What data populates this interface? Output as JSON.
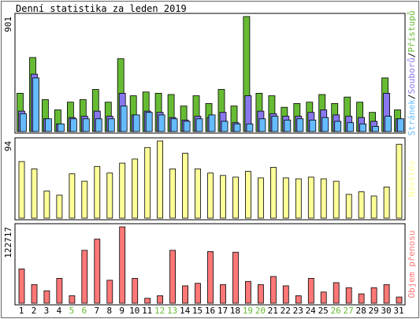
{
  "chart_data": {
    "title": "Denní statistika za leden 2019",
    "type": "bar",
    "categories": [
      "1",
      "2",
      "3",
      "4",
      "5",
      "6",
      "7",
      "8",
      "9",
      "10",
      "11",
      "12",
      "13",
      "14",
      "15",
      "16",
      "17",
      "18",
      "19",
      "20",
      "21",
      "22",
      "23",
      "24",
      "25",
      "26",
      "27",
      "28",
      "29",
      "30",
      "31"
    ],
    "weekend_days": [
      "5",
      "6",
      "12",
      "13",
      "19",
      "20",
      "26",
      "27"
    ],
    "colors": {
      "pristupu": "#66bb33",
      "souboru": "#8877ee",
      "stranek": "#66bbff",
      "navstev": "#ffff99",
      "objem": "#ff7777",
      "weekend_label": "#66bb33",
      "weekday_label": "#000000",
      "frame": "#000000",
      "panel_border": "#666666"
    },
    "panels": [
      {
        "id": "hits",
        "ymax_label": "901",
        "ymax": 901,
        "legend": {
          "stranek": "Stránek",
          "separator1": "/",
          "souboru": "Souborů",
          "separator2": "/",
          "pristupu": "Přístupů"
        },
        "series": [
          {
            "name": "Přístupů",
            "key": "pristupu",
            "values": [
              300,
              580,
              250,
              170,
              230,
              250,
              330,
              230,
              570,
              280,
              310,
              300,
              290,
              200,
              280,
              220,
              330,
              200,
              901,
              300,
              280,
              190,
              220,
              230,
              290,
              220,
              270,
              230,
              150,
              420,
              170
            ]
          },
          {
            "name": "Souborů",
            "key": "souboru",
            "values": [
              160,
              450,
              100,
              60,
              110,
              120,
              160,
              120,
              300,
              130,
              160,
              150,
              110,
              90,
              120,
              110,
              150,
              70,
              280,
              160,
              140,
              120,
              120,
              150,
              170,
              130,
              120,
              110,
              80,
              300,
              100
            ]
          },
          {
            "name": "Stránek",
            "key": "stranek",
            "values": [
              140,
              420,
              100,
              60,
              100,
              100,
              100,
              100,
              200,
              130,
              150,
              130,
              100,
              80,
              100,
              130,
              80,
              60,
              60,
              100,
              120,
              90,
              100,
              90,
              110,
              80,
              70,
              60,
              40,
              120,
              100
            ]
          }
        ]
      },
      {
        "id": "visits",
        "ymax_label": "94",
        "ymax": 94,
        "legend_label": "Návštěv",
        "series": [
          {
            "name": "Návštěv",
            "key": "navstev",
            "values": [
              69,
              60,
              33,
              28,
              54,
              45,
              63,
              55,
              67,
              72,
              86,
              94,
              60,
              79,
              60,
              55,
              52,
              50,
              57,
              49,
              62,
              49,
              48,
              50,
              48,
              45,
              29,
              32,
              27,
              38,
              90
            ]
          }
        ]
      },
      {
        "id": "volume",
        "ymax_label": "122717",
        "ymax": 122717,
        "legend_label": "Objem přenosu",
        "series": [
          {
            "name": "Objem přenosu",
            "key": "objem",
            "values": [
              55000,
              30000,
              20000,
              40000,
              12000,
              85000,
              103000,
              37000,
              122717,
              40000,
              8000,
              12000,
              85000,
              28000,
              32000,
              83000,
              30000,
              82000,
              35000,
              30000,
              43000,
              28000,
              12000,
              40000,
              18000,
              33000,
              25000,
              15000,
              25000,
              30000,
              10000
            ]
          }
        ]
      }
    ]
  }
}
